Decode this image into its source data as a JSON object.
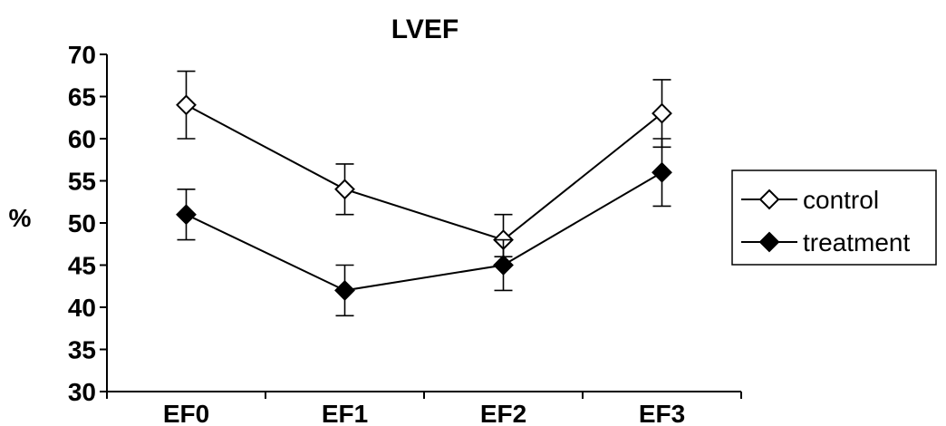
{
  "chart_data": {
    "type": "line",
    "title": "LVEF",
    "ylabel": "%",
    "xlabel": "",
    "categories": [
      "EF0",
      "EF1",
      "EF2",
      "EF3"
    ],
    "ylim": [
      30,
      70
    ],
    "yticks": [
      30,
      35,
      40,
      45,
      50,
      55,
      60,
      65,
      70
    ],
    "grid": false,
    "legend_position": "right",
    "series": [
      {
        "name": "control",
        "marker": "open-diamond",
        "color": "#000000",
        "fill": "#ffffff",
        "values": [
          64,
          54,
          48,
          63
        ],
        "error_low": [
          60,
          51,
          46,
          59
        ],
        "error_high": [
          68,
          57,
          51,
          67
        ]
      },
      {
        "name": "treatment",
        "marker": "filled-diamond",
        "color": "#000000",
        "fill": "#000000",
        "values": [
          51,
          42,
          45,
          56
        ],
        "error_low": [
          48,
          39,
          42,
          52
        ],
        "error_high": [
          54,
          45,
          48,
          60
        ]
      }
    ]
  }
}
